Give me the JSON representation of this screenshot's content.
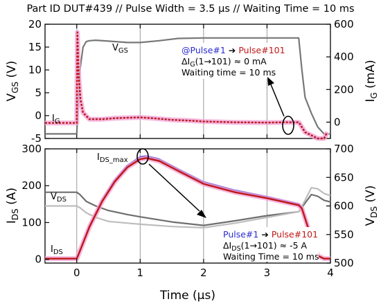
{
  "header": "Part ID DUT#439 // Pulse Width = 3.5 μs // Waiting Time = 10 ms",
  "colors": {
    "pulse1": "#2b2bd0",
    "pulse101": "#c01818",
    "pulse101_halo": "#f2a6d6",
    "vgs": "#777777",
    "vds_dark": "#6e6e6e",
    "vds_light": "#bdbdbd",
    "gridline": "#9a9a9a"
  },
  "chart_data": [
    {
      "type": "line",
      "panel": "top",
      "xlim": [
        -0.5,
        4
      ],
      "ylim_left": [
        -5,
        20
      ],
      "ylim_right": [
        -100,
        600
      ],
      "x_ticks": [
        0,
        1,
        2,
        3,
        4
      ],
      "yticks_left": [
        -5,
        0,
        5,
        10,
        15,
        20
      ],
      "yticks_right": [
        0,
        200,
        400,
        600
      ],
      "ylabel_left": {
        "main": "V",
        "sub": "GS",
        "unit": " (V)"
      },
      "ylabel_right": {
        "main": "I",
        "sub": "G",
        "unit": " (mA)"
      },
      "grid": "vertical",
      "series": [
        {
          "name": "VGS",
          "label_main": "V",
          "label_sub": "GS",
          "axis": "left",
          "color": "vgs",
          "x": [
            -0.5,
            0.0,
            0.05,
            0.1,
            0.15,
            0.2,
            0.3,
            0.5,
            0.8,
            1.0,
            1.3,
            1.6,
            2.0,
            2.5,
            3.0,
            3.5,
            3.55,
            3.6,
            3.7,
            3.8,
            3.9,
            4.0
          ],
          "y": [
            -4,
            -4,
            10,
            15,
            16.2,
            16.4,
            16.5,
            16.3,
            16.0,
            16.0,
            16.4,
            16.9,
            17.0,
            17.0,
            17.0,
            17.0,
            10,
            4,
            0.5,
            -2.5,
            -4,
            -4
          ]
        },
        {
          "name": "Pulse#1",
          "quantity": "IG",
          "axis": "right",
          "color": "pulse1",
          "x": [
            -0.5,
            0.0,
            0.01,
            0.03,
            0.06,
            0.1,
            0.2,
            0.4,
            0.6,
            0.8,
            1.0,
            1.2,
            1.5,
            1.8,
            2.0,
            2.5,
            3.0,
            3.3,
            3.5,
            3.52,
            3.6,
            3.8,
            3.9,
            3.95
          ],
          "y": [
            -5,
            -5,
            560,
            300,
            140,
            60,
            20,
            20,
            25,
            28,
            30,
            25,
            15,
            10,
            5,
            0,
            -2,
            0,
            0,
            -10,
            -60,
            -100,
            -100,
            -60
          ]
        },
        {
          "name": "Pulse#101",
          "quantity": "IG",
          "axis": "right",
          "color": "pulse101",
          "x": [
            -0.5,
            0.0,
            0.01,
            0.03,
            0.06,
            0.1,
            0.2,
            0.4,
            0.6,
            0.8,
            1.0,
            1.2,
            1.5,
            1.8,
            2.0,
            2.5,
            3.0,
            3.3,
            3.5,
            3.52,
            3.6,
            3.8,
            3.9,
            3.95
          ],
          "y": [
            -5,
            -5,
            550,
            290,
            135,
            58,
            18,
            18,
            24,
            27,
            29,
            24,
            14,
            9,
            4,
            -1,
            -3,
            -1,
            -1,
            -12,
            -62,
            -100,
            -100,
            -62
          ]
        }
      ],
      "annotations": {
        "legend_pulse1": "@Pulse#1",
        "legend_pulse101": "Pulse#101",
        "arrow": "➔",
        "delta_main": "ΔI",
        "delta_sub": "G",
        "delta_rest": "(1→101) ≈ 0 mA",
        "waiting": "Waiting time = 10 ms"
      },
      "current_label": {
        "main": "I",
        "sub": "G"
      }
    },
    {
      "type": "line",
      "panel": "bottom",
      "xlim": [
        -0.5,
        4
      ],
      "ylim_left": [
        -10,
        300
      ],
      "ylim_right": [
        500,
        700
      ],
      "x_ticks": [
        0,
        1,
        2,
        3,
        4
      ],
      "yticks_left": [
        0,
        100,
        200,
        300
      ],
      "yticks_right": [
        500,
        550,
        600,
        650,
        700
      ],
      "xlabel": "Time (μs)",
      "ylabel_left": {
        "main": "I",
        "sub": "DS",
        "unit": " (A)"
      },
      "ylabel_right": {
        "main": "V",
        "sub": "DS",
        "unit": " (V)"
      },
      "grid": "vertical",
      "series": [
        {
          "name": "VDS Pulse#1",
          "axis": "right",
          "color": "vds_dark",
          "x": [
            -0.5,
            0.0,
            0.05,
            0.15,
            0.3,
            0.5,
            0.8,
            1.0,
            1.5,
            2.0,
            2.5,
            3.0,
            3.5,
            3.6,
            3.7,
            3.8,
            3.9,
            4.0
          ],
          "y": [
            624,
            624,
            620,
            608,
            600,
            592,
            585,
            581,
            572,
            566,
            574,
            583,
            590,
            605,
            620,
            617,
            610,
            607
          ]
        },
        {
          "name": "VDS Pulse#101",
          "axis": "right",
          "color": "vds_light",
          "x": [
            -0.5,
            0.0,
            0.05,
            0.15,
            0.3,
            0.5,
            0.8,
            1.0,
            1.5,
            2.0,
            2.5,
            3.0,
            3.5,
            3.6,
            3.7,
            3.8,
            3.9,
            4.0
          ],
          "y": [
            600,
            600,
            597,
            588,
            580,
            573,
            570,
            568,
            564,
            562,
            570,
            580,
            590,
            610,
            632,
            630,
            622,
            618
          ]
        },
        {
          "name": "Pulse#1",
          "quantity": "IDS",
          "axis": "left",
          "color": "pulse1",
          "x": [
            -0.5,
            0.0,
            0.02,
            0.2,
            0.4,
            0.6,
            0.8,
            1.0,
            1.1,
            1.3,
            1.6,
            2.0,
            2.5,
            3.0,
            3.5,
            3.55,
            3.7,
            3.8,
            3.9,
            4.0
          ],
          "y": [
            2,
            2,
            10,
            90,
            160,
            215,
            255,
            278,
            280,
            272,
            245,
            210,
            187,
            170,
            150,
            140,
            60,
            10,
            2,
            2
          ]
        },
        {
          "name": "Pulse#101",
          "quantity": "IDS",
          "axis": "left",
          "color": "pulse101",
          "x": [
            -0.5,
            0.0,
            0.02,
            0.2,
            0.4,
            0.6,
            0.8,
            1.0,
            1.1,
            1.3,
            1.6,
            2.0,
            2.5,
            3.0,
            3.5,
            3.55,
            3.7,
            3.8,
            3.9,
            4.0
          ],
          "y": [
            2,
            2,
            10,
            88,
            157,
            211,
            250,
            272,
            275,
            267,
            240,
            205,
            182,
            166,
            147,
            138,
            58,
            10,
            2,
            2
          ]
        }
      ],
      "annotations": {
        "legend_pulse1": "Pulse#1",
        "legend_pulse101": "Pulse#101",
        "arrow": "➔",
        "delta_main": "ΔI",
        "delta_sub": "DS",
        "delta_rest": "(1→101) ≈ -5 A",
        "waiting": "Waiting Time = 10 ms"
      },
      "peak_label": {
        "main": "I",
        "sub": "DS_max"
      },
      "vds_label": {
        "main": "V",
        "sub": "DS"
      },
      "current_label": {
        "main": "I",
        "sub": "DS"
      }
    }
  ]
}
